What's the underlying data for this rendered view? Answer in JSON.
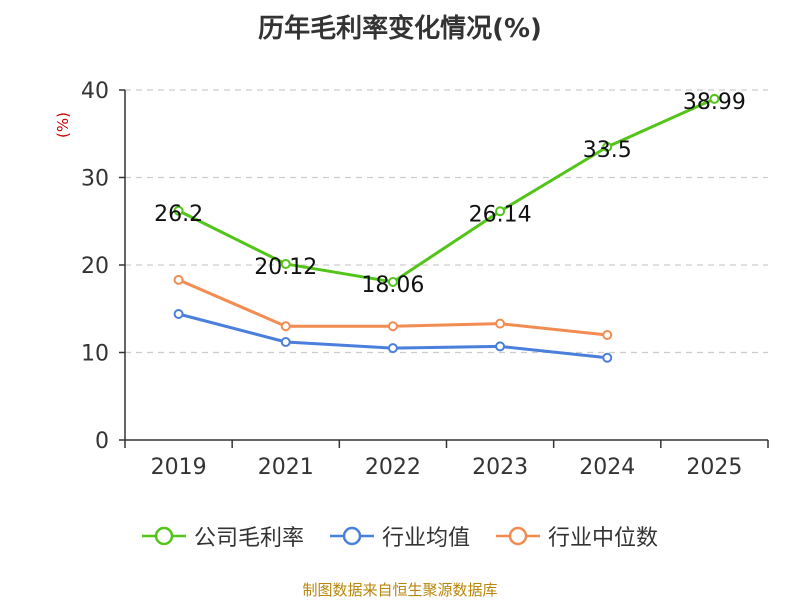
{
  "chart_data": {
    "type": "line",
    "title": "历年毛利率变化情况(%)",
    "ylabel": "(%)",
    "xlabel": "",
    "categories": [
      "2019",
      "2021",
      "2022",
      "2023",
      "2024",
      "2025"
    ],
    "ylim": [
      0,
      40
    ],
    "yticks": [
      0,
      10,
      20,
      30,
      40
    ],
    "grid": "horizontal-dashed",
    "legend_position": "bottom",
    "series": [
      {
        "name": "公司毛利率",
        "color": "#52c41a",
        "values": [
          26.2,
          20.12,
          18.06,
          26.14,
          33.5,
          38.99
        ],
        "labels": [
          "26.2",
          "20.12",
          "18.06",
          "26.14",
          "33.5",
          "38.99"
        ],
        "show_labels": true
      },
      {
        "name": "行业均值",
        "color": "#4a7fdb",
        "values": [
          14.4,
          11.2,
          10.5,
          10.7,
          9.4,
          null
        ],
        "show_labels": false
      },
      {
        "name": "行业中位数",
        "color": "#f28c52",
        "values": [
          18.3,
          13.0,
          13.0,
          13.3,
          12.0,
          null
        ],
        "show_labels": false
      }
    ]
  },
  "source": "制图数据来自恒生聚源数据库",
  "colors": {
    "ylabel": "#cc0000",
    "source": "#b8860b",
    "axis": "#333333",
    "grid": "#cccccc"
  }
}
